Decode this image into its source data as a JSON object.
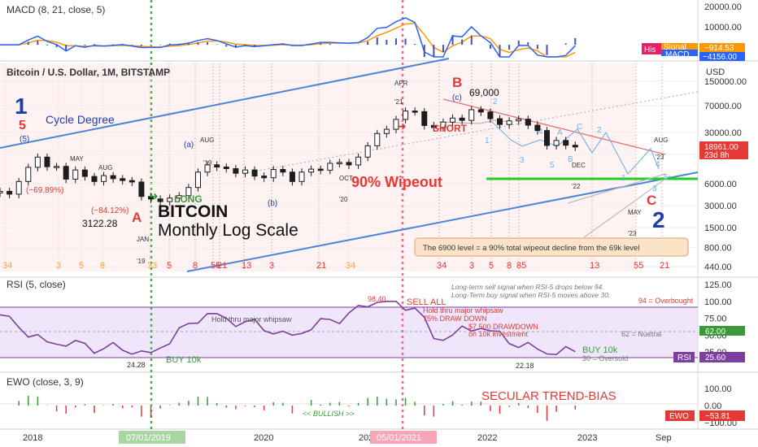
{
  "colors": {
    "accent_red": "#e53935",
    "accent_blue": "#1f3fa8",
    "trend_blue": "#4a86d6",
    "green": "#3a9a3a",
    "bright_green": "#22cc22",
    "candle_up": "#1d1d1d",
    "rsi_line": "#7b3fa0",
    "macd_line": "#2962ff",
    "signal_line": "#ff9800",
    "hist": "#3f51b5",
    "grid": "#e6e6e6",
    "pink_bg": "#fde8e8"
  },
  "panes": {
    "macd": {
      "title": "MACD (8, 21, close, 5)",
      "axis_ticks": [
        "20000.00",
        "10000.00",
        "0.00"
      ],
      "labels": [
        {
          "text": "Signal",
          "value": "−914.53",
          "color": "#ff9800"
        },
        {
          "text": "MACD",
          "value": "−4156.00",
          "color": "#2962ff"
        },
        {
          "text": "His",
          "value": "",
          "color": "#e91e63"
        }
      ]
    },
    "price": {
      "title": "Bitcoin / U.S. Dollar, 1M, BITSTAMP",
      "currency": "USD",
      "axis_ticks": [
        "150000.00",
        "70000.00",
        "30000.00",
        "15000.00",
        "6000.00",
        "3000.00",
        "1500.00",
        "800.00",
        "440.00"
      ],
      "price_label": "18961.00",
      "countdown": "23d 8h"
    },
    "rsi": {
      "title": "RSI (5, close)",
      "axis_ticks": [
        "125.00",
        "100.00",
        "75.00",
        "50.00",
        "25.00"
      ],
      "value": "62.00",
      "rsi_label": "RSI",
      "rsi_value": "25.60",
      "level_labels": {
        "overbought": "94 = Overbought",
        "neutral": "62 = Nuetral",
        "oversold": "30 = Oversold"
      }
    },
    "ewo": {
      "title": "EWO (close, 3, 9)",
      "axis_ticks": [
        "100.00",
        "0.00",
        "−100.00"
      ],
      "label": "EWO",
      "value": "−53.81"
    }
  },
  "x_axis": {
    "labels": [
      "2018",
      "2020",
      "2022",
      "2023",
      "Sep"
    ],
    "highlight_left": "07/01/2019",
    "highlight_right": "05/01/2021",
    "year_2021_partial": "2021"
  },
  "annotations": {
    "wave_1": "1",
    "wave_5": "5",
    "cycle_degree": "Cycle Degree",
    "paren_5": "(5)",
    "may": "MAY",
    "aug_2018": "AUG",
    "pct_69": "(−69.89%)",
    "pct_84": "(−84.12%)",
    "low_price": "3122.28",
    "a_label": "A",
    "long_label": "LONG",
    "jan": "JAN",
    "y19": "'19",
    "paren_a": "(a)",
    "aug_19": "AUG",
    "n19": "'19",
    "paren_b": "(b)",
    "oct": "OCT",
    "y20": "'20",
    "apr": "APR",
    "y21": "'21",
    "b_label": "B",
    "paren_c": "(c)",
    "top_price": "69,000",
    "short_label": "SHORT",
    "wipeout": "90% Wipeout",
    "dec": "DEC",
    "y22": "'22",
    "aug_23": "AUG",
    "y23": "'23",
    "may_23": "MAY",
    "y23b": "'23",
    "c_label": "C",
    "wave_2": "2",
    "bitcoin": "BITCOIN",
    "monthly_log": "Monthly Log Scale",
    "callout": "The 6900 level = a 90% total wipeout decline from the 69k level",
    "small_2": "2",
    "small_1": "1",
    "small_3": "3",
    "small_4": "4",
    "small_5": "5",
    "blue_A": "A",
    "blue_B": "B",
    "blue_C": "C",
    "blue_1": "1",
    "blue_2": "2",
    "blue_3": "3",
    "blue_4": "4",
    "blue_5": "5",
    "fib_row": [
      {
        "t": "34",
        "c": "#f4a43a"
      },
      {
        "t": "3",
        "c": "#f4a43a"
      },
      {
        "t": "5",
        "c": "#f4a43a"
      },
      {
        "t": "8",
        "c": "#f4a43a"
      },
      {
        "t": "33",
        "c": "#f4a43a"
      },
      {
        "t": "5",
        "c": "#e53935"
      },
      {
        "t": "8",
        "c": "#e53935"
      },
      {
        "t": "55",
        "c": "#e53935"
      },
      {
        "t": "21",
        "c": "#e53935"
      },
      {
        "t": "13",
        "c": "#e53935"
      },
      {
        "t": "3",
        "c": "#e53935"
      },
      {
        "t": "21",
        "c": "#e53935"
      },
      {
        "t": "34",
        "c": "#f4a43a"
      },
      {
        "t": "34",
        "c": "#e53935"
      },
      {
        "t": "3",
        "c": "#e53935"
      },
      {
        "t": "5",
        "c": "#e53935"
      },
      {
        "t": "8",
        "c": "#e53935"
      },
      {
        "t": "85",
        "c": "#e53935"
      },
      {
        "t": "13",
        "c": "#e53935"
      },
      {
        "t": "55",
        "c": "#e53935"
      },
      {
        "t": "21",
        "c": "#e53935"
      }
    ]
  },
  "rsi_annotations": {
    "note_line1": "Long-term sell signal when RSI-5 drops below 94.",
    "note_line2": "Long-Term buy signal when RSI-5 moves above 30.",
    "peak": "98.40",
    "sell_all": "SELL ALL",
    "hold_left": "Hold thru major whipsaw",
    "hold_right": "Hold thru major whipsaw",
    "drawdown_pct": "75% DRAW DOWN",
    "drawdown_amount": "$7,500 DRAWDOWN",
    "drawdown_on": "on 10k investment",
    "low_left": "24.28",
    "buy_left": "BUY 10k",
    "buy_right": "BUY 10k",
    "low_right": "22.18"
  },
  "ewo_annotations": {
    "secular": "SECULAR TREND-BIAS",
    "bullish": "<< BULLISH >>"
  },
  "chart_data": [
    {
      "type": "line",
      "title": "Bitcoin / U.S. Dollar, 1M, BITSTAMP",
      "scale": "log",
      "ylabel": "USD",
      "x_range": [
        "2017-08",
        "2023-10"
      ],
      "ylim": [
        440,
        150000
      ],
      "series": [
        {
          "name": "Bitcoin / U.S. Dollar",
          "x": [
            "2017-08",
            "2017-09",
            "2017-10",
            "2017-11",
            "2017-12",
            "2018-01",
            "2018-02",
            "2018-03",
            "2018-04",
            "2018-05",
            "2018-06",
            "2018-07",
            "2018-08",
            "2018-09",
            "2018-10",
            "2018-11",
            "2018-12",
            "2019-01",
            "2019-02",
            "2019-03",
            "2019-04",
            "2019-05",
            "2019-06",
            "2019-07",
            "2019-08",
            "2019-09",
            "2019-10",
            "2019-11",
            "2019-12",
            "2020-01",
            "2020-02",
            "2020-03",
            "2020-04",
            "2020-05",
            "2020-06",
            "2020-07",
            "2020-08",
            "2020-09",
            "2020-10",
            "2020-11",
            "2020-12",
            "2021-01",
            "2021-02",
            "2021-03",
            "2021-04",
            "2021-05",
            "2021-06",
            "2021-07",
            "2021-08",
            "2021-09",
            "2021-10",
            "2021-11",
            "2021-12",
            "2022-01",
            "2022-02",
            "2022-03",
            "2022-04",
            "2022-05",
            "2022-06",
            "2022-07",
            "2022-08",
            "2022-09"
          ],
          "values": [
            4700,
            4300,
            6400,
            10000,
            13800,
            10200,
            10300,
            6900,
            9200,
            7500,
            6400,
            7700,
            7000,
            6600,
            6300,
            4000,
            3700,
            3400,
            3800,
            4100,
            5300,
            8600,
            10800,
            10100,
            9600,
            8300,
            9200,
            7600,
            7200,
            9350,
            8600,
            6400,
            8600,
            9450,
            9140,
            11350,
            11650,
            10780,
            13800,
            19700,
            29000,
            33100,
            45200,
            58800,
            57700,
            37300,
            35000,
            41500,
            47100,
            43800,
            61300,
            57000,
            46200,
            38500,
            43200,
            45500,
            37700,
            31800,
            19900,
            23300,
            20050,
            18961
          ]
        }
      ]
    },
    {
      "type": "line",
      "title": "RSI (5, close)",
      "ylim": [
        0,
        125
      ],
      "series": [
        {
          "name": "RSI",
          "x": [
            "2017-08",
            "2018-01",
            "2018-12",
            "2019-06",
            "2020-03",
            "2020-12",
            "2021-04",
            "2021-06",
            "2021-11",
            "2022-06",
            "2022-09"
          ],
          "values": [
            80,
            40,
            24.28,
            82,
            50,
            98.4,
            90,
            45,
            60,
            22.18,
            25.6
          ]
        }
      ]
    },
    {
      "type": "bar",
      "title": "EWO (close, 3, 9)",
      "ylim": [
        -100,
        100
      ],
      "series": [
        {
          "name": "EWO",
          "x": [
            "2022-09"
          ],
          "values": [
            -53.81
          ]
        }
      ]
    },
    {
      "type": "line",
      "title": "MACD (8, 21, close, 5)",
      "ylim": [
        -5000,
        20000
      ],
      "series": [
        {
          "name": "Signal",
          "x": [
            "2022-09"
          ],
          "values": [
            -914.53
          ]
        },
        {
          "name": "MACD",
          "x": [
            "2022-09"
          ],
          "values": [
            -4156.0
          ]
        }
      ]
    }
  ]
}
